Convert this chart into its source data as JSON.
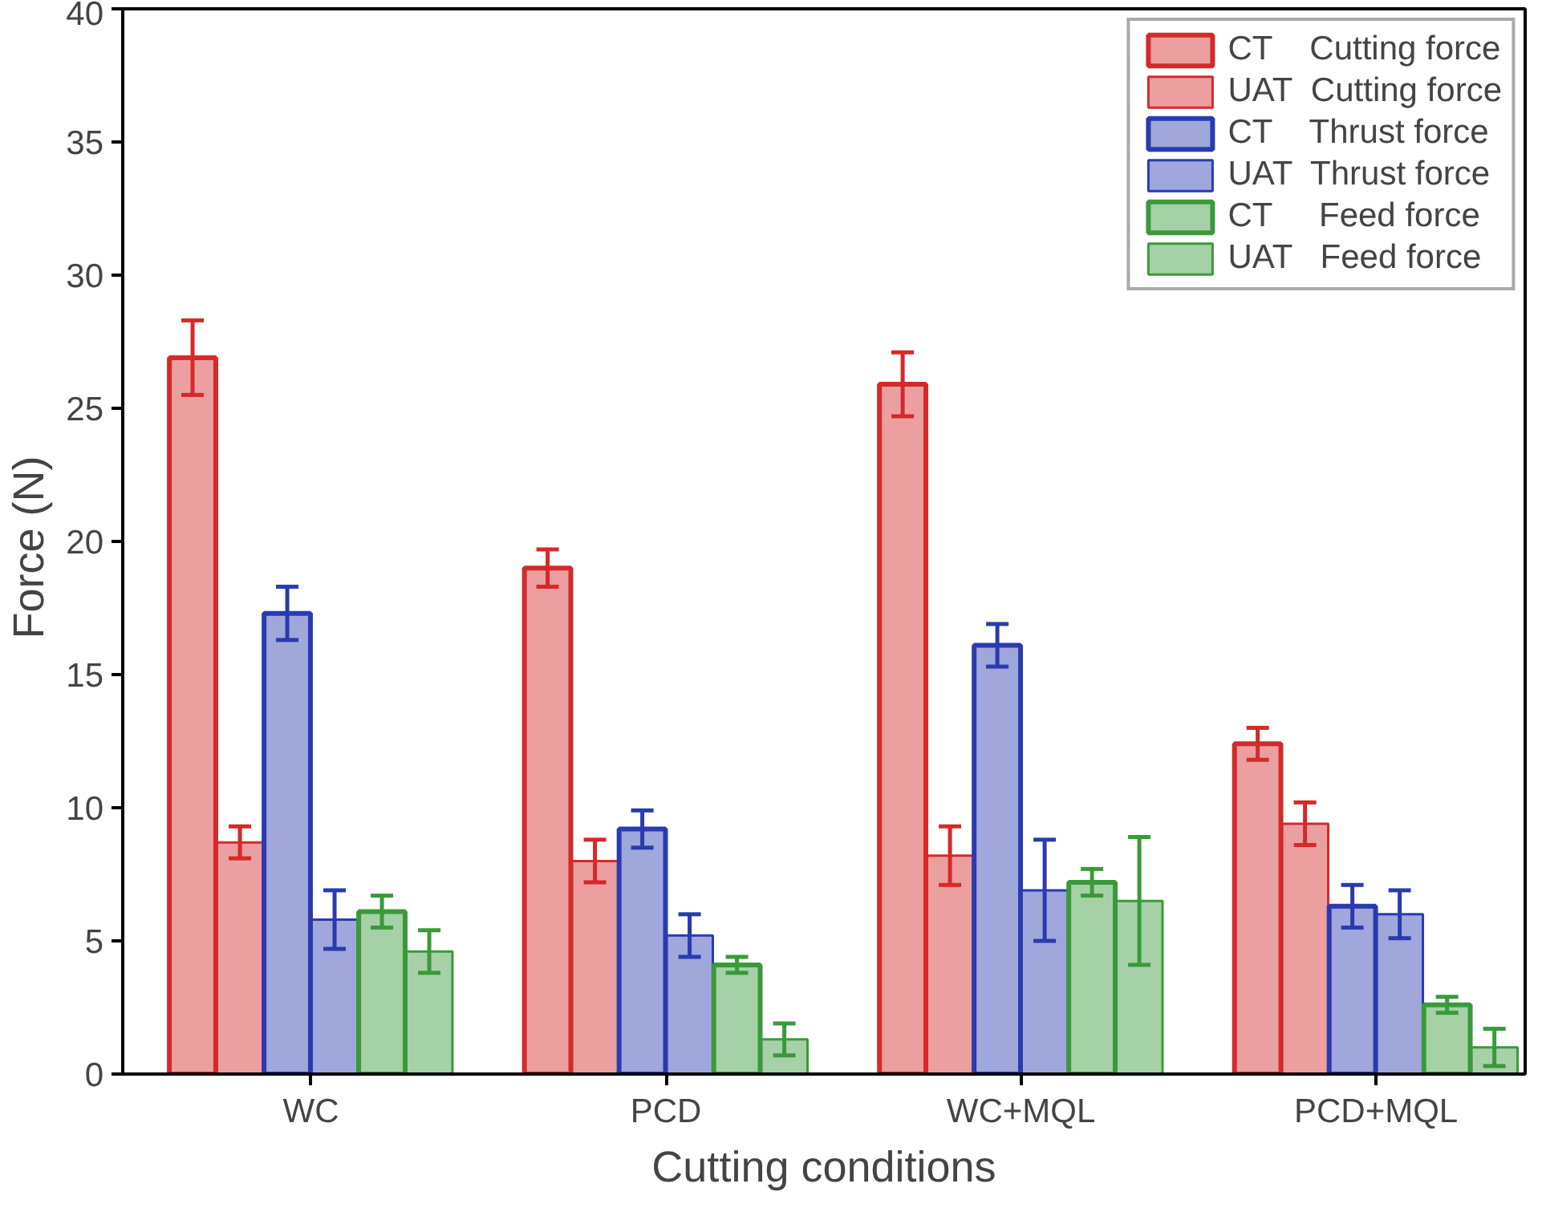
{
  "chart_data": {
    "type": "bar",
    "xlabel": "Cutting conditions",
    "ylabel": "Force  (N)",
    "categories": [
      "WC",
      "PCD",
      "WC+MQL",
      "PCD+MQL"
    ],
    "series": [
      {
        "name": "CT    Cutting force",
        "color": "#d42a2a",
        "values": [
          26.9,
          19.0,
          25.9,
          12.4
        ],
        "errors": [
          1.4,
          0.7,
          1.2,
          0.6
        ]
      },
      {
        "name": "UAT  Cutting force",
        "color": "#d42a2a",
        "values": [
          8.7,
          8.0,
          8.2,
          9.4
        ],
        "errors": [
          0.6,
          0.8,
          1.1,
          0.8
        ]
      },
      {
        "name": "CT    Thrust force",
        "color": "#2a3bb0",
        "values": [
          17.3,
          9.2,
          16.1,
          6.3
        ],
        "errors": [
          1.0,
          0.7,
          0.8,
          0.8
        ]
      },
      {
        "name": "UAT  Thrust force",
        "color": "#2a3bb0",
        "values": [
          5.8,
          5.2,
          6.9,
          6.0
        ],
        "errors": [
          1.1,
          0.8,
          1.9,
          0.9
        ]
      },
      {
        "name": "CT     Feed force",
        "color": "#3a9a3a",
        "values": [
          6.1,
          4.1,
          7.2,
          2.6
        ],
        "errors": [
          0.6,
          0.3,
          0.5,
          0.3
        ]
      },
      {
        "name": "UAT   Feed force",
        "color": "#3a9a3a",
        "values": [
          4.6,
          1.3,
          6.5,
          1.0
        ],
        "errors": [
          0.8,
          0.6,
          2.4,
          0.7
        ]
      }
    ],
    "ylim": [
      0,
      40
    ],
    "yticks": [
      0,
      5,
      10,
      15,
      20,
      25,
      30,
      35,
      40
    ],
    "grid": false,
    "legend": "top right"
  }
}
